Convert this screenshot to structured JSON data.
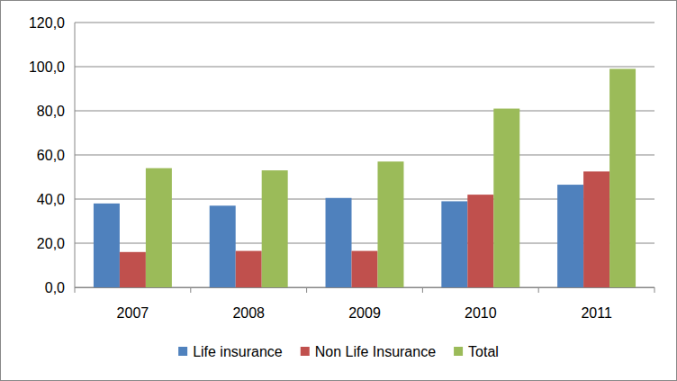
{
  "chart_data": {
    "type": "bar",
    "categories": [
      "2007",
      "2008",
      "2009",
      "2010",
      "2011"
    ],
    "series": [
      {
        "name": "Life insurance",
        "color": "#4f81bd",
        "values": [
          38.0,
          37.0,
          40.5,
          39.0,
          46.5
        ]
      },
      {
        "name": "Non Life Insurance",
        "color": "#c0504d",
        "values": [
          16.0,
          16.5,
          16.5,
          42.0,
          52.5
        ]
      },
      {
        "name": "Total",
        "color": "#9bbb59",
        "values": [
          54.0,
          53.0,
          57.0,
          81.0,
          99.0
        ]
      }
    ],
    "ylim": [
      0,
      120
    ],
    "yticks": [
      {
        "value": 0,
        "label": "0,0"
      },
      {
        "value": 20,
        "label": "20,0"
      },
      {
        "value": 40,
        "label": "40,0"
      },
      {
        "value": 60,
        "label": "60,0"
      },
      {
        "value": 80,
        "label": "80,0"
      },
      {
        "value": 100,
        "label": "100,0"
      },
      {
        "value": 120,
        "label": "120,0"
      }
    ],
    "grid": true,
    "legend": "bottom"
  }
}
